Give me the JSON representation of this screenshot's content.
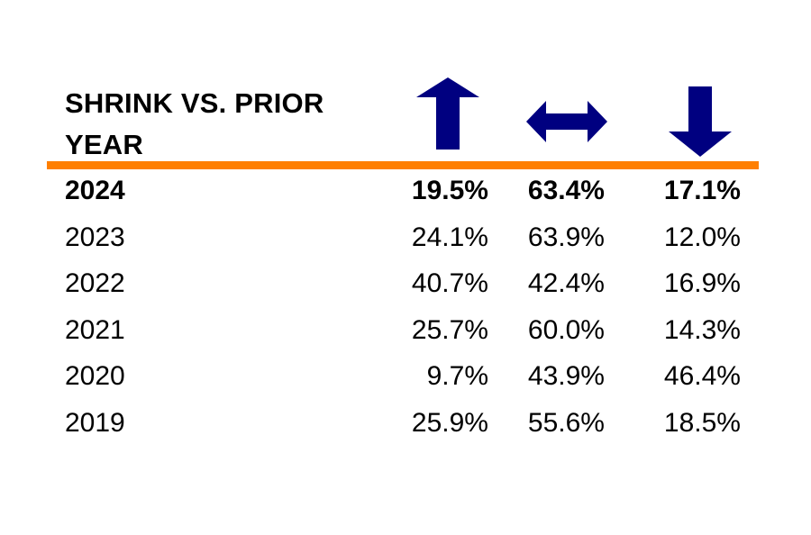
{
  "colors": {
    "arrow": "#000080",
    "rule": "#ff7f00",
    "text": "#000000"
  },
  "chart_data": {
    "type": "table",
    "title": "SHRINK VS. PRIOR YEAR",
    "columns": [
      {
        "icon": "arrow-up-icon"
      },
      {
        "icon": "arrow-left-right-icon"
      },
      {
        "icon": "arrow-down-icon"
      }
    ],
    "rows": [
      {
        "year": "2024",
        "values": [
          "19.5%",
          "63.4%",
          "17.1%"
        ],
        "bold": true
      },
      {
        "year": "2023",
        "values": [
          "24.1%",
          "63.9%",
          "12.0%"
        ],
        "bold": false
      },
      {
        "year": "2022",
        "values": [
          "40.7%",
          "42.4%",
          "16.9%"
        ],
        "bold": false
      },
      {
        "year": "2021",
        "values": [
          "25.7%",
          "60.0%",
          "14.3%"
        ],
        "bold": false
      },
      {
        "year": "2020",
        "values": [
          "9.7%",
          "43.9%",
          "46.4%"
        ],
        "bold": false
      },
      {
        "year": "2019",
        "values": [
          "25.9%",
          "55.6%",
          "18.5%"
        ],
        "bold": false
      }
    ]
  }
}
